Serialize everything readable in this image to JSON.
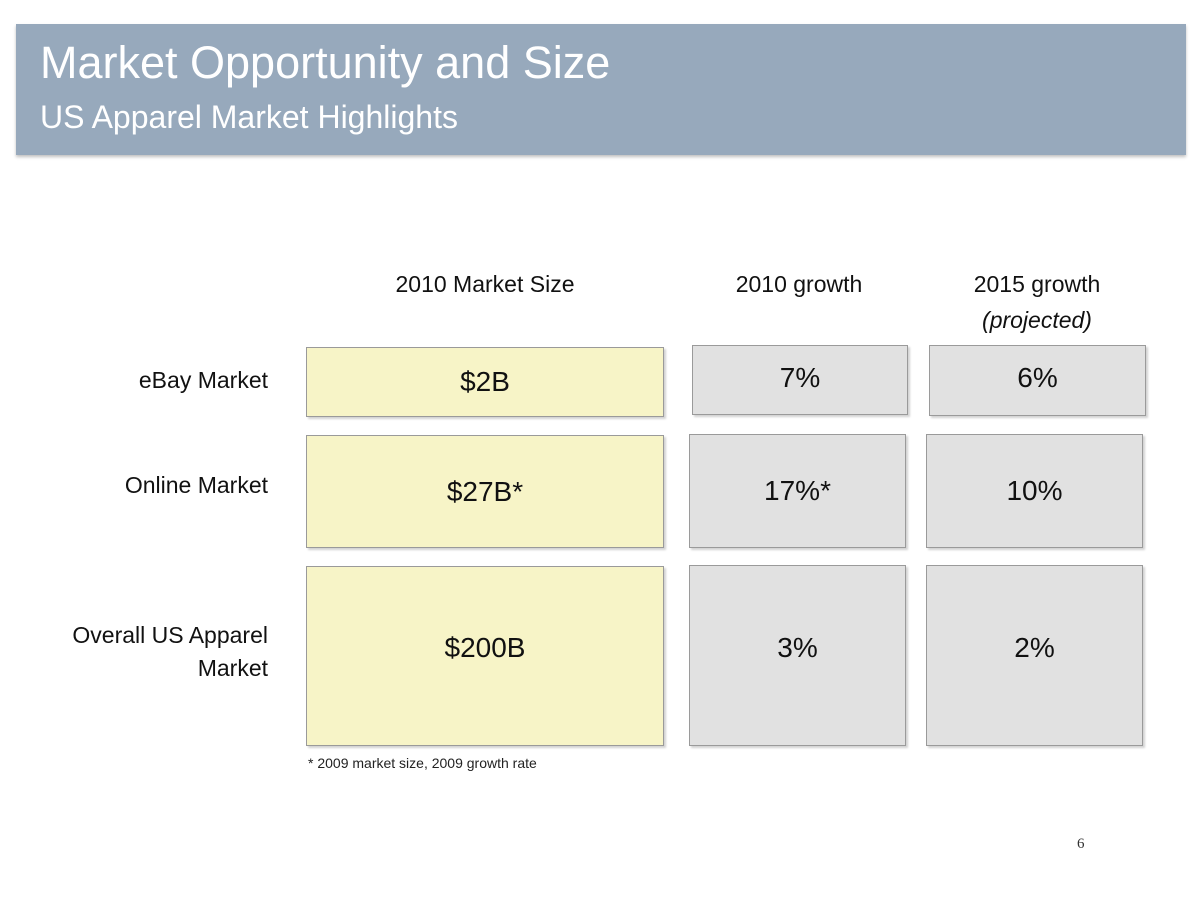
{
  "header": {
    "title": "Market Opportunity and Size",
    "subtitle": "US Apparel Market Highlights"
  },
  "columns": [
    {
      "label": "2010 Market Size",
      "sublabel": ""
    },
    {
      "label": "2010 growth",
      "sublabel": ""
    },
    {
      "label": "2015 growth",
      "sublabel": "(projected)"
    }
  ],
  "rows": [
    {
      "label_line1": "eBay Market",
      "label_line2": "",
      "market_size": "$2B",
      "growth_2010": "7%",
      "growth_2015": "6%"
    },
    {
      "label_line1": "Online Market",
      "label_line2": "",
      "market_size": "$27B*",
      "growth_2010": "17%*",
      "growth_2015": "10%"
    },
    {
      "label_line1": "Overall US Apparel",
      "label_line2": "Market",
      "market_size": "$200B",
      "growth_2010": "3%",
      "growth_2015": "2%"
    }
  ],
  "footnote": "* 2009 market size, 2009 growth rate",
  "page_number": "6",
  "colors": {
    "header_bg": "#97a9bc",
    "size_cell_bg": "#f7f4c7",
    "growth_cell_bg": "#e1e1e1"
  }
}
